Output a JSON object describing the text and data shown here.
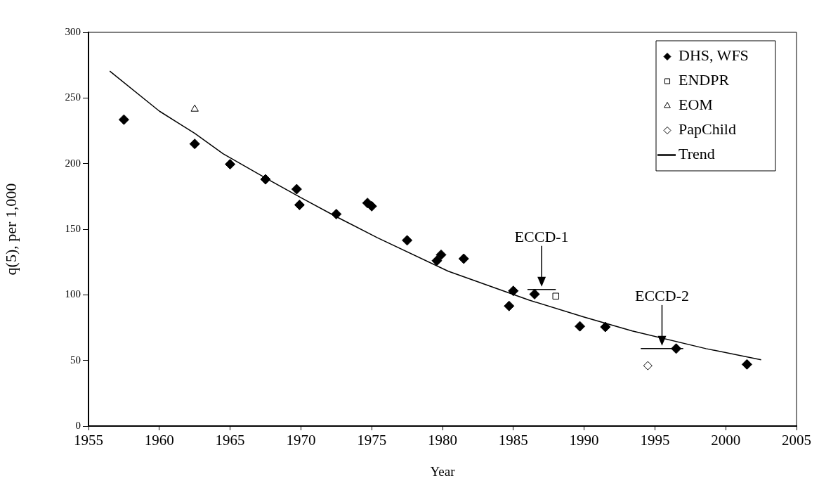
{
  "chart_data": {
    "type": "scatter",
    "xlabel": "Year",
    "ylabel": "q(5), per 1,000",
    "xlim": [
      1955,
      2005
    ],
    "xticks": [
      1955,
      1960,
      1965,
      1970,
      1975,
      1980,
      1985,
      1990,
      1995,
      2000,
      2005
    ],
    "ylim": [
      0,
      300
    ],
    "yticks": [
      0,
      50,
      100,
      150,
      200,
      250,
      300
    ],
    "grid": false,
    "legend": "top right",
    "annotations": [
      {
        "text": "ECCD-1",
        "x": 1987.0,
        "y": 104
      },
      {
        "text": "ECCD-2",
        "x": 1995.5,
        "y": 59
      }
    ],
    "series": [
      {
        "name": "DHS, WFS",
        "type": "scatter",
        "marker": "diamond",
        "color": "#000000",
        "x": [
          1957.5,
          1962.5,
          1965.0,
          1967.5,
          1969.7,
          1969.9,
          1972.5,
          1974.7,
          1975.0,
          1977.5,
          1979.6,
          1979.9,
          1981.5,
          1984.7,
          1985.0,
          1986.5,
          1989.7,
          1991.5,
          1996.5,
          2001.5
        ],
        "values": [
          233.5,
          215,
          199.5,
          188,
          180.5,
          168.5,
          161.5,
          170,
          167.5,
          141.5,
          126,
          130.5,
          127.5,
          91.5,
          103,
          100.5,
          76,
          75.5,
          59,
          47
        ]
      },
      {
        "name": "ENDPR",
        "type": "scatter",
        "marker": "square",
        "color": "#ffffff",
        "x": [
          1988.0
        ],
        "values": [
          99
        ]
      },
      {
        "name": "EOM",
        "type": "scatter",
        "marker": "triangle",
        "color": "#ffffff",
        "x": [
          1962.5
        ],
        "values": [
          241.5
        ]
      },
      {
        "name": "PapChild",
        "type": "scatter",
        "marker": "diamond",
        "color": "#ffffff",
        "x": [
          1994.5
        ],
        "values": [
          46
        ]
      },
      {
        "name": "Trend",
        "type": "line",
        "marker": "none",
        "line_style": "solid",
        "color": "#000000",
        "x": [
          1956.5,
          1960,
          1962.5,
          1964.5,
          1967.5,
          1970,
          1972.5,
          1975.4,
          1980.4,
          1986.1,
          1990,
          1993.4,
          1998.6,
          2002.5
        ],
        "values": [
          270.5,
          240,
          223,
          207.5,
          189,
          174,
          159.5,
          143.5,
          118,
          96,
          83,
          72.5,
          59,
          50.5
        ]
      },
      {
        "type": "line",
        "marker": "none",
        "line_style": "solid",
        "color": "#000000",
        "x": [
          1986.0,
          1988.0
        ],
        "values": [
          104,
          104
        ]
      },
      {
        "type": "line",
        "marker": "none",
        "line_style": "solid",
        "color": "#000000",
        "x": [
          1994.0,
          1997.0
        ],
        "values": [
          59,
          59
        ]
      }
    ]
  }
}
